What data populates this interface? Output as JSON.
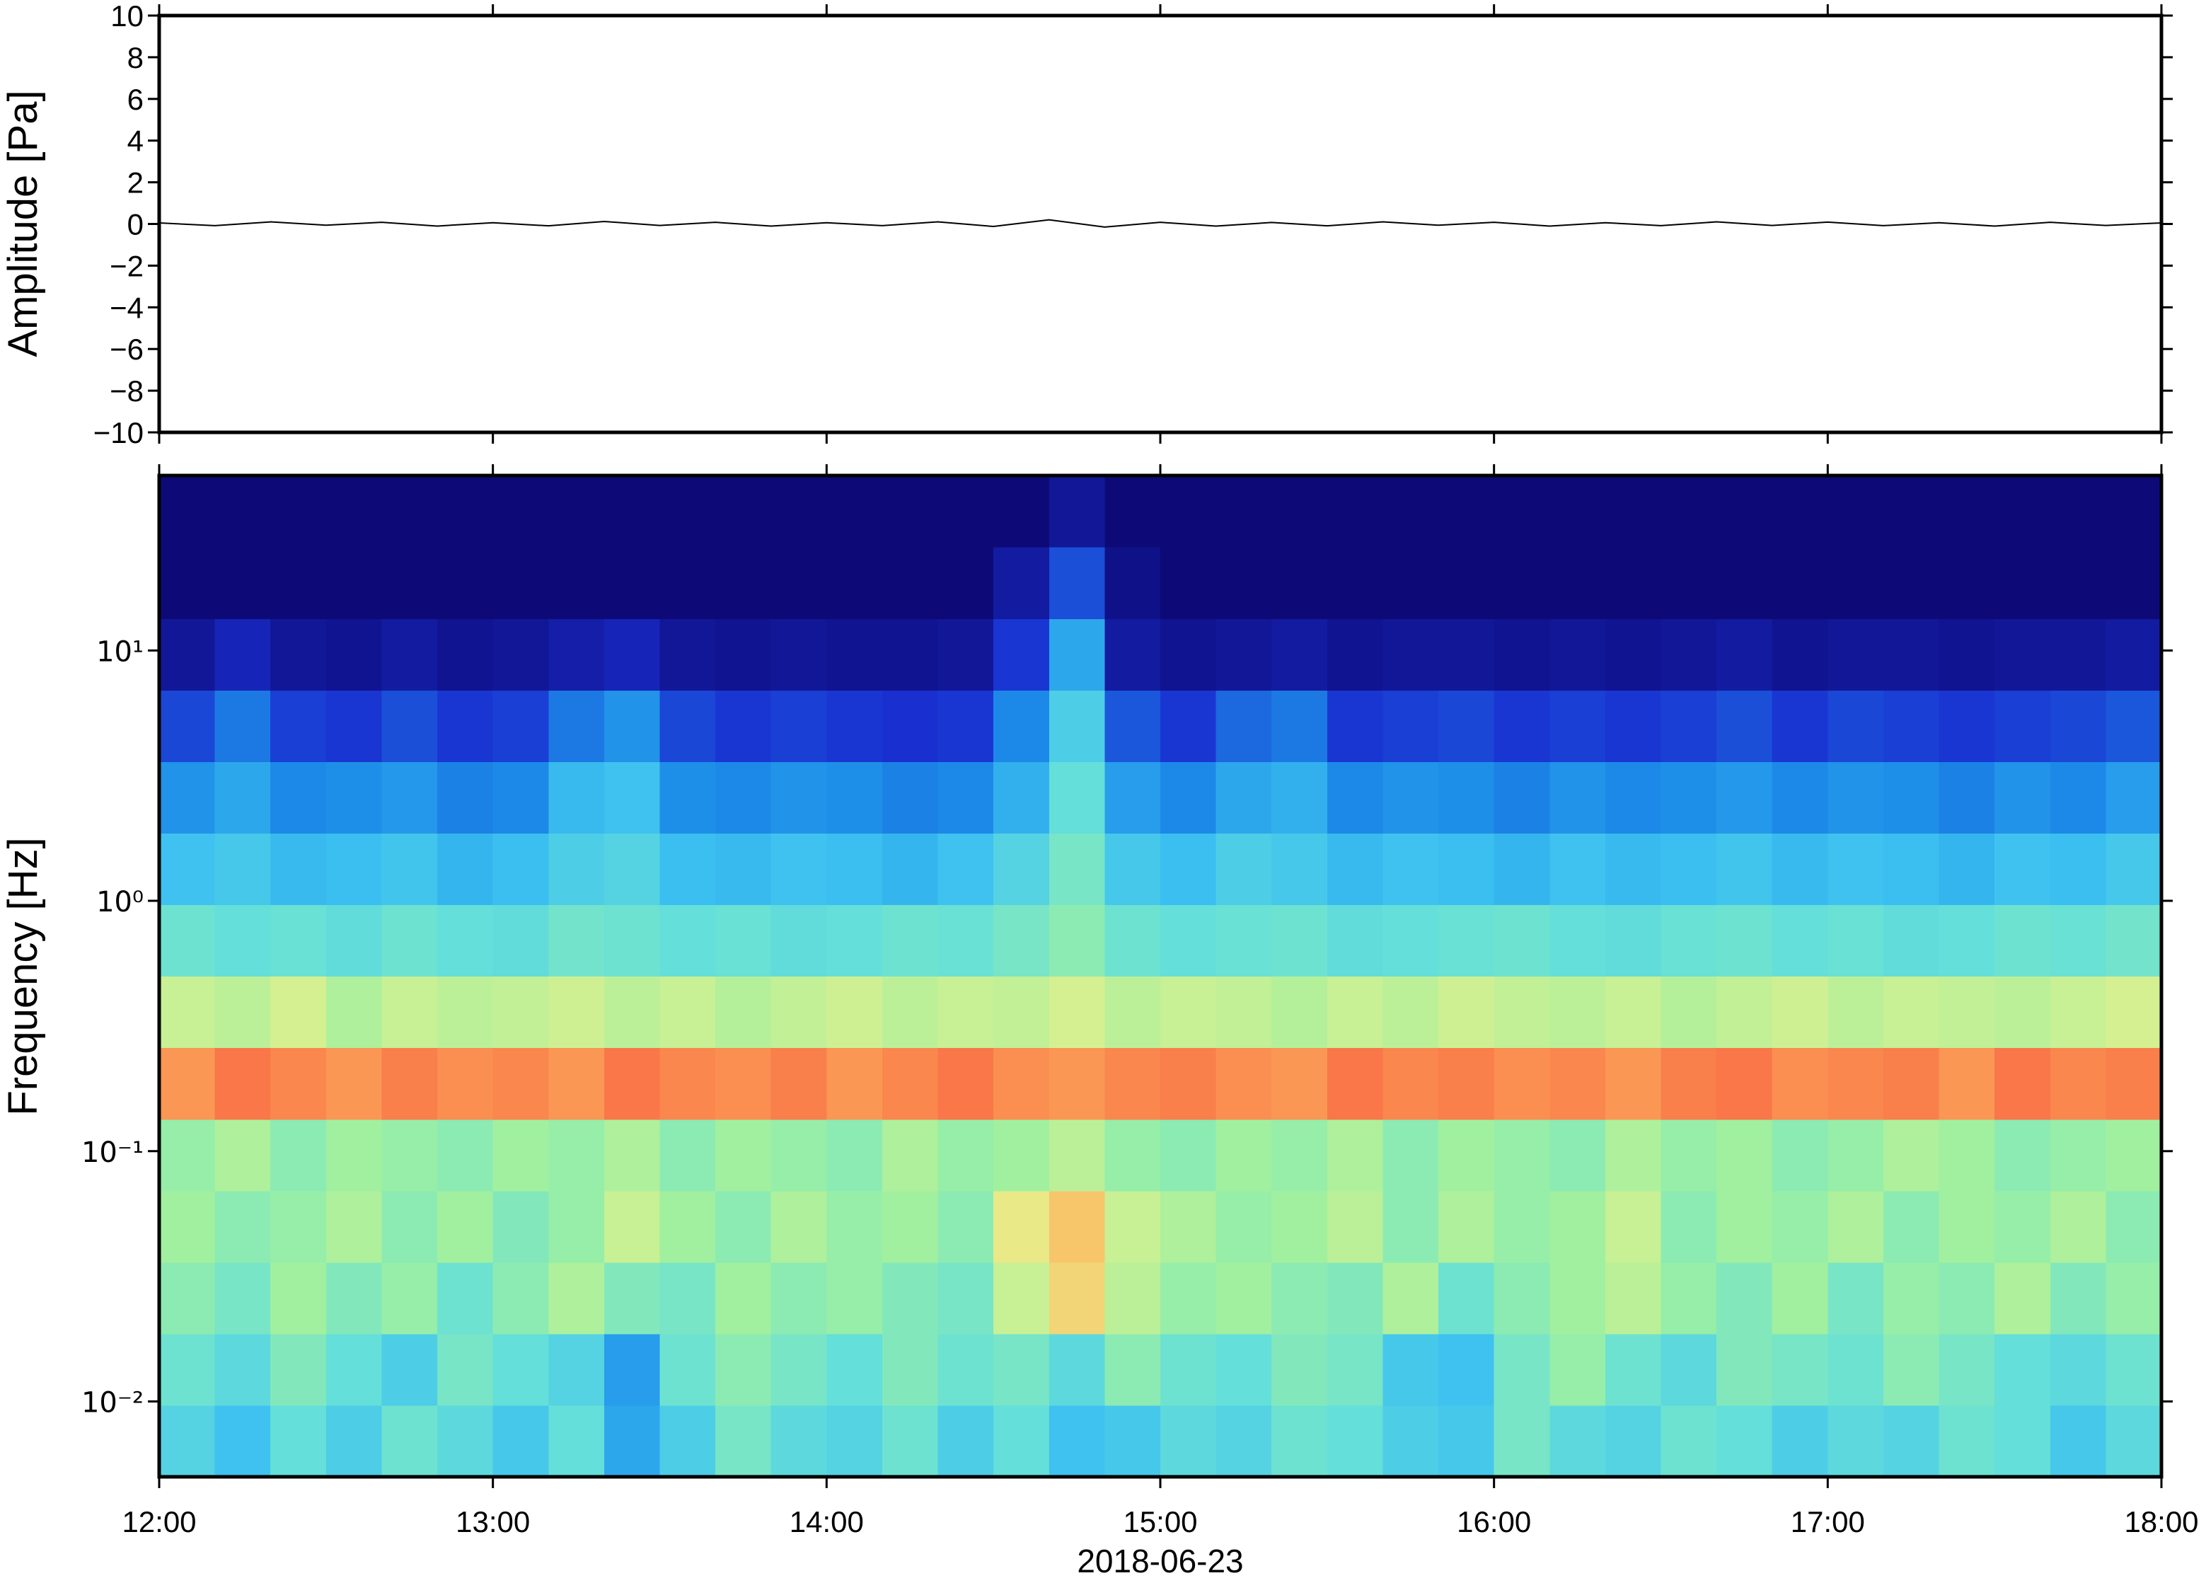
{
  "chart_data": [
    {
      "type": "line",
      "ylabel": "Amplitude [Pa]",
      "color": "#000000",
      "xlim": [
        "2018-06-23 12:00",
        "2018-06-23 18:00"
      ],
      "x": [
        "2018-06-23 12:00",
        "2018-06-23 12:10",
        "2018-06-23 12:20",
        "2018-06-23 12:30",
        "2018-06-23 12:40",
        "2018-06-23 12:50",
        "2018-06-23 13:00",
        "2018-06-23 13:10",
        "2018-06-23 13:20",
        "2018-06-23 13:30",
        "2018-06-23 13:40",
        "2018-06-23 13:50",
        "2018-06-23 14:00",
        "2018-06-23 14:10",
        "2018-06-23 14:20",
        "2018-06-23 14:30",
        "2018-06-23 14:40",
        "2018-06-23 14:50",
        "2018-06-23 15:00",
        "2018-06-23 15:10",
        "2018-06-23 15:20",
        "2018-06-23 15:30",
        "2018-06-23 15:40",
        "2018-06-23 15:50",
        "2018-06-23 16:00",
        "2018-06-23 16:10",
        "2018-06-23 16:20",
        "2018-06-23 16:30",
        "2018-06-23 16:40",
        "2018-06-23 16:50",
        "2018-06-23 17:00",
        "2018-06-23 17:10",
        "2018-06-23 17:20",
        "2018-06-23 17:30",
        "2018-06-23 17:40",
        "2018-06-23 17:50",
        "2018-06-23 18:00"
      ],
      "values": [
        0.05,
        -0.08,
        0.1,
        -0.06,
        0.08,
        -0.1,
        0.06,
        -0.09,
        0.12,
        -0.07,
        0.08,
        -0.1,
        0.06,
        -0.08,
        0.1,
        -0.12,
        0.2,
        -0.15,
        0.08,
        -0.1,
        0.07,
        -0.09,
        0.1,
        -0.06,
        0.08,
        -0.1,
        0.06,
        -0.08,
        0.1,
        -0.07,
        0.09,
        -0.08,
        0.06,
        -0.1,
        0.08,
        -0.07,
        0.05
      ],
      "ylim": [
        -10,
        10
      ],
      "yticks": [
        {
          "value": -10,
          "label": "−10"
        },
        {
          "value": -8,
          "label": "−8"
        },
        {
          "value": -6,
          "label": "−6"
        },
        {
          "value": -4,
          "label": "−4"
        },
        {
          "value": -2,
          "label": "−2"
        },
        0,
        2,
        4,
        6,
        8,
        10
      ]
    },
    {
      "type": "heatmap",
      "ylabel": "Frequency [Hz]",
      "xlabel": "2018-06-23",
      "log": true,
      "xlim": [
        "2018-06-23 12:00",
        "2018-06-23 18:00"
      ],
      "xticks": [
        {
          "value": "2018-06-23 12:00",
          "label": "12:00"
        },
        {
          "value": "2018-06-23 13:00",
          "label": "13:00"
        },
        {
          "value": "2018-06-23 14:00",
          "label": "14:00"
        },
        {
          "value": "2018-06-23 15:00",
          "label": "15:00"
        },
        {
          "value": "2018-06-23 16:00",
          "label": "16:00"
        },
        {
          "value": "2018-06-23 17:00",
          "label": "17:00"
        },
        {
          "value": "2018-06-23 18:00",
          "label": "18:00"
        }
      ],
      "ylim": [
        0.005,
        50
      ],
      "yticks": [
        {
          "value": 0.01,
          "label": "10⁻²"
        },
        {
          "value": 0.1,
          "label": "10⁻¹"
        },
        {
          "value": 1,
          "label": "10⁰"
        },
        {
          "value": 10,
          "label": "10¹"
        }
      ],
      "x": [
        "2018-06-23 12:00",
        "2018-06-23 12:10",
        "2018-06-23 12:20",
        "2018-06-23 12:30",
        "2018-06-23 12:40",
        "2018-06-23 12:50",
        "2018-06-23 13:00",
        "2018-06-23 13:10",
        "2018-06-23 13:20",
        "2018-06-23 13:30",
        "2018-06-23 13:40",
        "2018-06-23 13:50",
        "2018-06-23 14:00",
        "2018-06-23 14:10",
        "2018-06-23 14:20",
        "2018-06-23 14:30",
        "2018-06-23 14:40",
        "2018-06-23 14:50",
        "2018-06-23 15:00",
        "2018-06-23 15:10",
        "2018-06-23 15:20",
        "2018-06-23 15:30",
        "2018-06-23 15:40",
        "2018-06-23 15:50",
        "2018-06-23 16:00",
        "2018-06-23 16:10",
        "2018-06-23 16:20",
        "2018-06-23 16:30",
        "2018-06-23 16:40",
        "2018-06-23 16:50",
        "2018-06-23 17:00",
        "2018-06-23 17:10",
        "2018-06-23 17:20",
        "2018-06-23 17:30",
        "2018-06-23 17:40",
        "2018-06-23 17:50"
      ],
      "bins": [
        0.005,
        0.00966,
        0.01864,
        0.036,
        0.0695,
        0.134,
        0.259,
        0.5,
        0.965,
        1.864,
        3.6,
        6.95,
        13.4,
        25.9,
        50
      ],
      "zlim": [
        0,
        100
      ],
      "colormap": [
        "#0d0a78",
        "#1a2fd0",
        "#1c8be8",
        "#3cc0f0",
        "#66e0d8",
        "#9ef0a0",
        "#e6f08c",
        "#fcb860",
        "#f86040",
        "#c81e1e"
      ],
      "values": [
        [
          40,
          34,
          44,
          38,
          46,
          42,
          36,
          44,
          28,
          38,
          48,
          42,
          40,
          46,
          38,
          44,
          34,
          36,
          42,
          40,
          46,
          44,
          38,
          36,
          48,
          42,
          40,
          46,
          44,
          38,
          42,
          40,
          46,
          44,
          36,
          42
        ],
        [
          46,
          42,
          50,
          44,
          38,
          48,
          44,
          40,
          26,
          46,
          52,
          48,
          44,
          50,
          46,
          48,
          42,
          52,
          46,
          44,
          50,
          48,
          36,
          34,
          48,
          54,
          46,
          42,
          50,
          48,
          46,
          52,
          48,
          44,
          42,
          46
        ],
        [
          52,
          48,
          56,
          50,
          54,
          46,
          52,
          58,
          50,
          48,
          56,
          52,
          54,
          50,
          48,
          62,
          72,
          60,
          54,
          56,
          52,
          50,
          58,
          46,
          52,
          56,
          60,
          54,
          50,
          56,
          48,
          54,
          52,
          58,
          50,
          54
        ],
        [
          56,
          52,
          54,
          58,
          52,
          56,
          50,
          54,
          62,
          56,
          52,
          58,
          54,
          56,
          52,
          68,
          75,
          62,
          58,
          54,
          56,
          60,
          52,
          58,
          54,
          56,
          62,
          52,
          56,
          54,
          58,
          52,
          56,
          54,
          58,
          52
        ],
        [
          54,
          58,
          52,
          56,
          54,
          52,
          56,
          54,
          58,
          52,
          56,
          54,
          52,
          58,
          54,
          56,
          60,
          54,
          52,
          56,
          54,
          58,
          52,
          56,
          54,
          52,
          58,
          54,
          56,
          52,
          54,
          58,
          56,
          52,
          54,
          56
        ],
        [
          82,
          86,
          84,
          82,
          85,
          83,
          84,
          82,
          86,
          84,
          83,
          85,
          82,
          84,
          86,
          83,
          82,
          84,
          85,
          83,
          82,
          86,
          84,
          85,
          83,
          84,
          82,
          85,
          86,
          83,
          84,
          85,
          82,
          86,
          84,
          85
        ],
        [
          62,
          60,
          64,
          58,
          62,
          60,
          61,
          63,
          60,
          62,
          59,
          61,
          63,
          60,
          62,
          61,
          64,
          60,
          62,
          61,
          59,
          62,
          60,
          63,
          61,
          60,
          62,
          59,
          61,
          63,
          60,
          62,
          61,
          60,
          62,
          64
        ],
        [
          46,
          44,
          45,
          43,
          46,
          44,
          43,
          47,
          46,
          44,
          45,
          43,
          44,
          46,
          45,
          48,
          52,
          46,
          44,
          45,
          46,
          43,
          44,
          45,
          46,
          44,
          43,
          45,
          46,
          44,
          45,
          43,
          44,
          46,
          45,
          47
        ],
        [
          34,
          36,
          32,
          33,
          35,
          31,
          33,
          38,
          40,
          33,
          32,
          34,
          33,
          31,
          34,
          40,
          48,
          36,
          33,
          38,
          36,
          32,
          34,
          33,
          31,
          34,
          32,
          33,
          35,
          32,
          34,
          33,
          31,
          34,
          33,
          36
        ],
        [
          24,
          28,
          22,
          23,
          25,
          21,
          22,
          32,
          34,
          23,
          22,
          24,
          23,
          21,
          22,
          30,
          44,
          26,
          22,
          28,
          30,
          22,
          24,
          23,
          21,
          24,
          22,
          23,
          25,
          22,
          24,
          23,
          21,
          24,
          22,
          26
        ],
        [
          14,
          20,
          13,
          12,
          15,
          12,
          13,
          20,
          24,
          14,
          12,
          13,
          12,
          11,
          12,
          22,
          38,
          16,
          12,
          18,
          20,
          12,
          13,
          14,
          12,
          13,
          12,
          13,
          15,
          12,
          14,
          13,
          12,
          13,
          14,
          16
        ],
        [
          4,
          8,
          4,
          3,
          5,
          3,
          4,
          6,
          8,
          4,
          3,
          4,
          3,
          3,
          4,
          12,
          28,
          5,
          3,
          4,
          5,
          3,
          4,
          4,
          3,
          4,
          3,
          4,
          5,
          3,
          4,
          4,
          3,
          4,
          4,
          5
        ],
        [
          0,
          0,
          0,
          0,
          0,
          0,
          0,
          0,
          0,
          0,
          0,
          0,
          0,
          0,
          0,
          5,
          15,
          2,
          0,
          0,
          0,
          0,
          0,
          0,
          0,
          0,
          0,
          0,
          0,
          0,
          0,
          0,
          0,
          0,
          0,
          0
        ],
        [
          0,
          0,
          0,
          0,
          0,
          0,
          0,
          0,
          0,
          0,
          0,
          0,
          0,
          0,
          0,
          0,
          4,
          0,
          0,
          0,
          0,
          0,
          0,
          0,
          0,
          0,
          0,
          0,
          0,
          0,
          0,
          0,
          0,
          0,
          0,
          0
        ]
      ]
    }
  ]
}
